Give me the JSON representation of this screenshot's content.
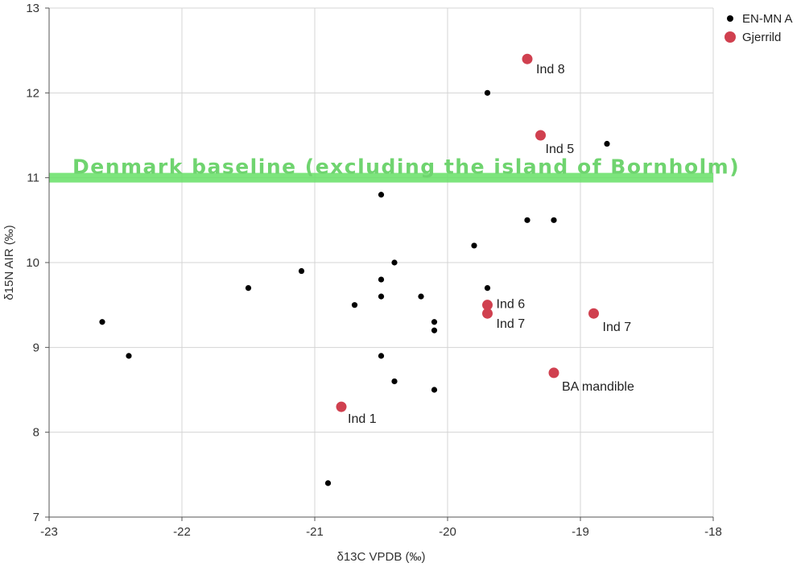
{
  "chart_data": {
    "type": "scatter",
    "xlabel": "δ13C VPDB (‰)",
    "ylabel": "δ15N AIR (‰)",
    "xlim": [
      -23,
      -18
    ],
    "ylim": [
      7,
      13
    ],
    "x_ticks": [
      -23,
      -22,
      -21,
      -20,
      -19,
      -18
    ],
    "y_ticks": [
      7,
      8,
      9,
      10,
      11,
      12,
      13
    ],
    "x_tick_labels": [
      "-23",
      "-22",
      "-21",
      "-20",
      "-19",
      "-18"
    ],
    "y_tick_labels": [
      "7",
      "8",
      "9",
      "10",
      "11",
      "12",
      "13"
    ],
    "grid": true,
    "legend_position": "top-right",
    "reference_line": {
      "y": 11,
      "label": "Denmark baseline (excluding the island of Bornholm)",
      "color": "#66e066"
    },
    "series": [
      {
        "name": "EN-MN A",
        "color": "#000000",
        "points": [
          {
            "x": -22.6,
            "y": 9.3
          },
          {
            "x": -22.4,
            "y": 8.9
          },
          {
            "x": -21.5,
            "y": 9.7
          },
          {
            "x": -21.1,
            "y": 9.9
          },
          {
            "x": -20.9,
            "y": 7.4
          },
          {
            "x": -20.7,
            "y": 9.5
          },
          {
            "x": -20.5,
            "y": 10.8
          },
          {
            "x": -20.5,
            "y": 9.8
          },
          {
            "x": -20.5,
            "y": 9.6
          },
          {
            "x": -20.5,
            "y": 8.9
          },
          {
            "x": -20.4,
            "y": 10.0
          },
          {
            "x": -20.4,
            "y": 8.6
          },
          {
            "x": -20.2,
            "y": 9.6
          },
          {
            "x": -20.1,
            "y": 9.3
          },
          {
            "x": -20.1,
            "y": 9.2
          },
          {
            "x": -20.1,
            "y": 8.5
          },
          {
            "x": -19.8,
            "y": 10.2
          },
          {
            "x": -19.7,
            "y": 12.0
          },
          {
            "x": -19.7,
            "y": 9.7
          },
          {
            "x": -19.4,
            "y": 10.5
          },
          {
            "x": -19.2,
            "y": 10.5
          },
          {
            "x": -18.8,
            "y": 11.4
          }
        ]
      },
      {
        "name": "Gjerrild",
        "color": "#d0404f",
        "points": [
          {
            "x": -19.4,
            "y": 12.4,
            "label": "Ind 8"
          },
          {
            "x": -19.3,
            "y": 11.5,
            "label": "Ind 5"
          },
          {
            "x": -19.7,
            "y": 9.5,
            "label": "Ind 6"
          },
          {
            "x": -19.7,
            "y": 9.4,
            "label": "Ind 7"
          },
          {
            "x": -18.9,
            "y": 9.4,
            "label": "Ind 7"
          },
          {
            "x": -19.2,
            "y": 8.7,
            "label": "BA mandible"
          },
          {
            "x": -20.8,
            "y": 8.3,
            "label": "Ind 1"
          }
        ]
      }
    ]
  }
}
